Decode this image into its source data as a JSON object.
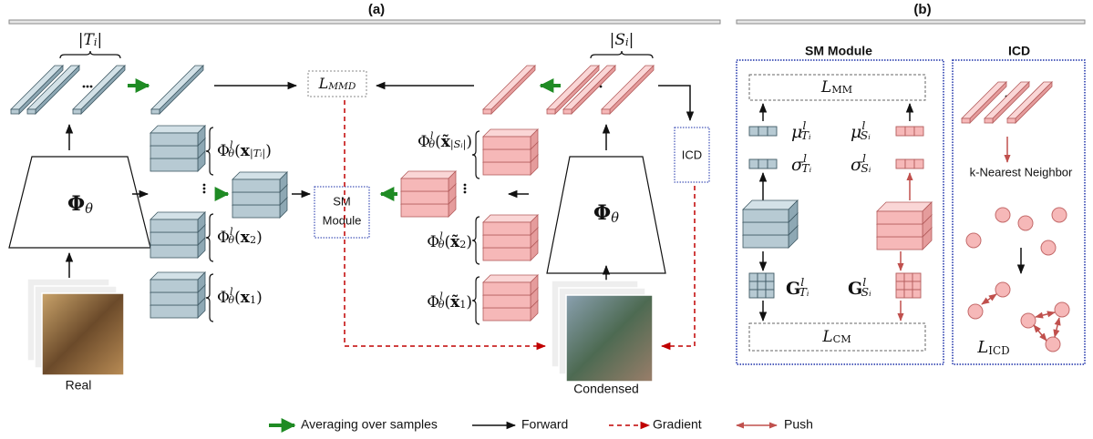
{
  "panel_a": {
    "title": "(a)",
    "count_T": [
      {
        "text": "|"
      },
      {
        "text": "T",
        "style": "italic"
      },
      {
        "text": "i",
        "pos": "sub",
        "style": "italic"
      },
      {
        "text": "|"
      }
    ],
    "loss_mmd": [
      {
        "text": "L",
        "style": "italic"
      },
      {
        "text": "MMD",
        "pos": "sub",
        "style": "italic"
      }
    ],
    "count_S": [
      {
        "text": "|"
      },
      {
        "text": "S",
        "style": "italic"
      },
      {
        "text": "i",
        "pos": "sub",
        "style": "italic"
      },
      {
        "text": "|"
      }
    ],
    "phi_left": [
      {
        "text": "Φ",
        "style": "bold"
      },
      {
        "text": "θ",
        "pos": "sub",
        "style": "italic"
      }
    ],
    "phi_right": [
      {
        "text": "Φ",
        "style": "bold"
      },
      {
        "text": "θ",
        "pos": "sub",
        "style": "italic"
      }
    ],
    "feat_T": [
      {
        "text": "Φ"
      },
      {
        "text": "l",
        "pos": "sup",
        "style": "italic"
      },
      {
        "text": "θ",
        "pos": "sub",
        "style": "italic"
      },
      {
        "text": "("
      },
      {
        "text": "x",
        "style": "bold"
      },
      {
        "text": "|Tᵢ|",
        "pos": "sub",
        "style": "italic"
      },
      {
        "text": ")"
      }
    ],
    "feat_x2": [
      {
        "text": "Φ"
      },
      {
        "text": "l",
        "pos": "sup",
        "style": "italic"
      },
      {
        "text": "θ",
        "pos": "sub",
        "style": "italic"
      },
      {
        "text": "("
      },
      {
        "text": "x",
        "style": "bold"
      },
      {
        "text": "2",
        "pos": "sub"
      },
      {
        "text": ")"
      }
    ],
    "feat_x1": [
      {
        "text": "Φ"
      },
      {
        "text": "l",
        "pos": "sup",
        "style": "italic"
      },
      {
        "text": "θ",
        "pos": "sub",
        "style": "italic"
      },
      {
        "text": "("
      },
      {
        "text": "x",
        "style": "bold"
      },
      {
        "text": "1",
        "pos": "sub"
      },
      {
        "text": ")"
      }
    ],
    "feat_S": [
      {
        "text": "Φ"
      },
      {
        "text": "l",
        "pos": "sup",
        "style": "italic"
      },
      {
        "text": "θ",
        "pos": "sub",
        "style": "italic"
      },
      {
        "text": "("
      },
      {
        "text": "x̃",
        "style": "bold"
      },
      {
        "text": "|Sᵢ|",
        "pos": "sub",
        "style": "italic"
      },
      {
        "text": ")"
      }
    ],
    "feat_xt2": [
      {
        "text": "Φ"
      },
      {
        "text": "l",
        "pos": "sup",
        "style": "italic"
      },
      {
        "text": "θ",
        "pos": "sub",
        "style": "italic"
      },
      {
        "text": "("
      },
      {
        "text": "x̃",
        "style": "bold"
      },
      {
        "text": "2",
        "pos": "sub"
      },
      {
        "text": ")"
      }
    ],
    "feat_xt1": [
      {
        "text": "Φ"
      },
      {
        "text": "l",
        "pos": "sup",
        "style": "italic"
      },
      {
        "text": "θ",
        "pos": "sub",
        "style": "italic"
      },
      {
        "text": "("
      },
      {
        "text": "x̃",
        "style": "bold"
      },
      {
        "text": "1",
        "pos": "sub"
      },
      {
        "text": ")"
      }
    ],
    "sm_box": [
      "SM",
      "Module"
    ],
    "icd_box": "ICD",
    "real": "Real",
    "condensed": "Condensed"
  },
  "panel_b": {
    "title": "(b)",
    "sm_title": "SM Module",
    "icd_title": "ICD",
    "loss_mm": [
      {
        "text": "L",
        "style": "italic"
      },
      {
        "text": "MM",
        "pos": "sub"
      }
    ],
    "loss_cm": [
      {
        "text": "L",
        "style": "italic"
      },
      {
        "text": "CM",
        "pos": "sub"
      }
    ],
    "mu_T": [
      {
        "text": "μ",
        "style": "italic"
      },
      {
        "text": "l",
        "pos": "sup",
        "style": "italic"
      },
      {
        "text": "Tᵢ",
        "pos": "sub",
        "style": "italic"
      }
    ],
    "sigma_T": [
      {
        "text": "σ",
        "style": "italic"
      },
      {
        "text": "l",
        "pos": "sup",
        "style": "italic"
      },
      {
        "text": "Tᵢ",
        "pos": "sub",
        "style": "italic"
      }
    ],
    "mu_S": [
      {
        "text": "μ",
        "style": "italic"
      },
      {
        "text": "l",
        "pos": "sup",
        "style": "italic"
      },
      {
        "text": "Sᵢ",
        "pos": "sub",
        "style": "italic"
      }
    ],
    "sigma_S": [
      {
        "text": "σ",
        "style": "italic"
      },
      {
        "text": "l",
        "pos": "sup",
        "style": "italic"
      },
      {
        "text": "Sᵢ",
        "pos": "sub",
        "style": "italic"
      }
    ],
    "gram_T": [
      {
        "text": "G",
        "style": "bold"
      },
      {
        "text": "l",
        "pos": "sup",
        "style": "italic"
      },
      {
        "text": "Tᵢ",
        "pos": "sub",
        "style": "italic"
      }
    ],
    "gram_S": [
      {
        "text": "G",
        "style": "bold"
      },
      {
        "text": "l",
        "pos": "sup",
        "style": "italic"
      },
      {
        "text": "Sᵢ",
        "pos": "sub",
        "style": "italic"
      }
    ],
    "knn": "k-Nearest Neighbor",
    "loss_icd": [
      {
        "text": "L",
        "style": "italic"
      },
      {
        "text": "ICD",
        "pos": "sub"
      }
    ]
  },
  "legend": [
    "Averaging over samples",
    "Forward",
    "Gradient",
    "Push"
  ]
}
